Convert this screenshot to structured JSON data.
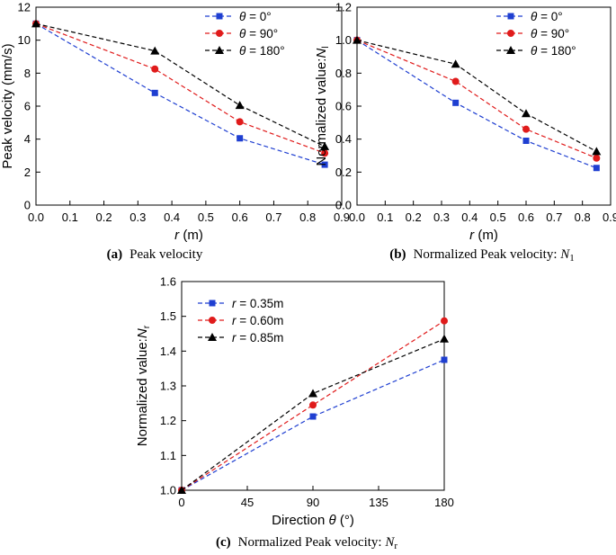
{
  "chart_data": [
    {
      "type": "line",
      "caption_tag": "(a)",
      "caption": "Peak velocity",
      "title": "",
      "xlabel_var": "r",
      "xlabel_unit": " (m)",
      "ylabel": "Peak velocity (mm/s)",
      "xlim": [
        0,
        0.9
      ],
      "ylim": [
        0,
        12
      ],
      "xticks": [
        "0.0",
        "0.1",
        "0.2",
        "0.3",
        "0.4",
        "0.5",
        "0.6",
        "0.7",
        "0.8",
        "0.9"
      ],
      "yticks": [
        "0",
        "2",
        "4",
        "6",
        "8",
        "10",
        "12"
      ],
      "legend_position": "top-right",
      "x": [
        0,
        0.35,
        0.6,
        0.85
      ],
      "series": [
        {
          "name": "θ = 0°",
          "var": "θ",
          "rest": " = 0°",
          "color": "#1f3fd1",
          "marker": "square",
          "values": [
            11.0,
            6.8,
            4.05,
            2.45
          ]
        },
        {
          "name": "θ = 90°",
          "var": "θ",
          "rest": " = 90°",
          "color": "#e01b1b",
          "marker": "circle",
          "values": [
            11.0,
            8.25,
            5.05,
            3.15
          ]
        },
        {
          "name": "θ = 180°",
          "var": "θ",
          "rest": " = 180°",
          "color": "#000000",
          "marker": "triangle",
          "values": [
            11.0,
            9.35,
            6.05,
            3.55
          ]
        }
      ]
    },
    {
      "type": "line",
      "caption_tag": "(b)",
      "caption": "Normalized Peak velocity: ",
      "caption_var": "N",
      "caption_sub": "1",
      "title": "",
      "xlabel_var": "r",
      "xlabel_unit": " (m)",
      "ylabel": "Normalized value:",
      "ylabel_var": "N",
      "ylabel_sub": "l",
      "xlim": [
        0,
        0.9
      ],
      "ylim": [
        0,
        1.2
      ],
      "xticks": [
        "0.0",
        "0.1",
        "0.2",
        "0.3",
        "0.4",
        "0.5",
        "0.6",
        "0.7",
        "0.8",
        "0.9"
      ],
      "yticks": [
        "0.0",
        "0.2",
        "0.4",
        "0.6",
        "0.8",
        "1.0",
        "1.2"
      ],
      "legend_position": "top-right",
      "x": [
        0,
        0.35,
        0.6,
        0.85
      ],
      "series": [
        {
          "name": "θ = 0°",
          "var": "θ",
          "rest": " = 0°",
          "color": "#1f3fd1",
          "marker": "square",
          "values": [
            1.0,
            0.62,
            0.39,
            0.225
          ]
        },
        {
          "name": "θ = 90°",
          "var": "θ",
          "rest": " = 90°",
          "color": "#e01b1b",
          "marker": "circle",
          "values": [
            1.0,
            0.75,
            0.46,
            0.285
          ]
        },
        {
          "name": "θ = 180°",
          "var": "θ",
          "rest": " = 180°",
          "color": "#000000",
          "marker": "triangle",
          "values": [
            1.0,
            0.855,
            0.555,
            0.325
          ]
        }
      ]
    },
    {
      "type": "line",
      "caption_tag": "(c)",
      "caption": "Normalized Peak velocity: ",
      "caption_var": "N",
      "caption_sub": "r",
      "title": "",
      "xlabel": "Direction ",
      "xlabel_var": "θ",
      "xlabel_unit": " (°)",
      "ylabel": "Normalized value:",
      "ylabel_var": "N",
      "ylabel_sub": "r",
      "xlim": [
        0,
        180
      ],
      "ylim": [
        1.0,
        1.6
      ],
      "xticks": [
        "0",
        "45",
        "90",
        "135",
        "180"
      ],
      "yticks": [
        "1.0",
        "1.1",
        "1.2",
        "1.3",
        "1.4",
        "1.5",
        "1.6"
      ],
      "legend_position": "top-left",
      "x": [
        0,
        90,
        180
      ],
      "series": [
        {
          "name": "r = 0.35m",
          "var": "r",
          "rest": " = 0.35m",
          "color": "#1f3fd1",
          "marker": "square",
          "values": [
            1.0,
            1.212,
            1.375
          ]
        },
        {
          "name": "r = 0.60m",
          "var": "r",
          "rest": " = 0.60m",
          "color": "#e01b1b",
          "marker": "circle",
          "values": [
            1.0,
            1.245,
            1.487
          ]
        },
        {
          "name": "r = 0.85m",
          "var": "r",
          "rest": " = 0.85m",
          "color": "#000000",
          "marker": "triangle",
          "values": [
            1.0,
            1.278,
            1.435
          ]
        }
      ]
    }
  ]
}
